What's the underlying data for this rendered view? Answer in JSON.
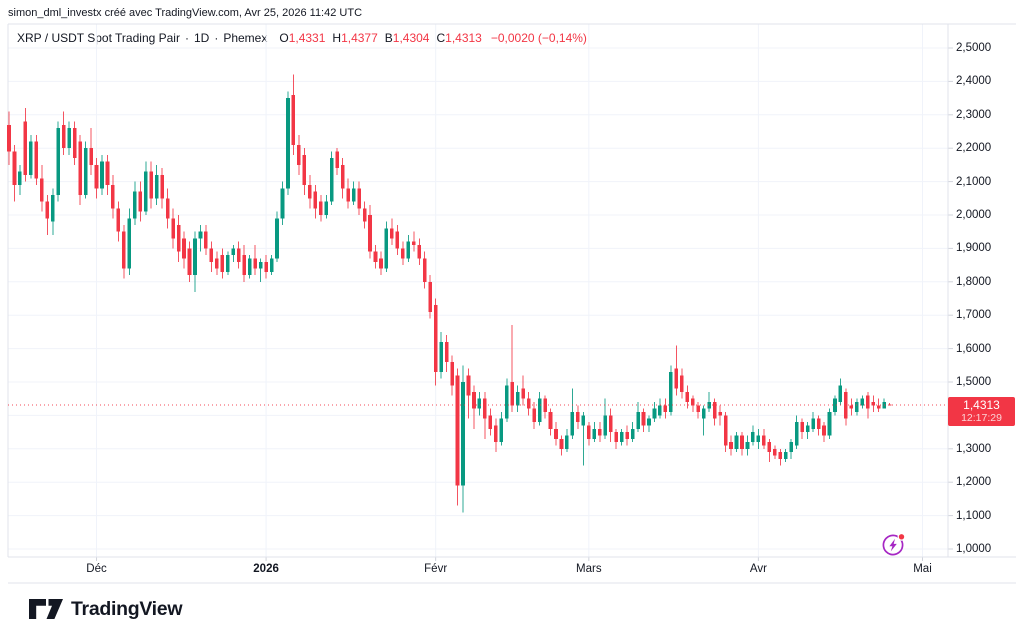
{
  "attribution": "simon_dml_investx créé avec TradingView.com, Avr 25, 2026 11:42 UTC",
  "legend": {
    "title": "XRP / USDT Spot Trading Pair",
    "separator": "·",
    "interval": "1D",
    "exchange": "Phemex",
    "open_label": "O",
    "open": "1,4331",
    "high_label": "H",
    "high": "1,4377",
    "low_label": "B",
    "low": "1,4304",
    "close_label": "C",
    "close": "1,4313",
    "change": "−0,0020 (−0,14%)"
  },
  "price_scale": {
    "tick_values": [
      2.5,
      2.4,
      2.3,
      2.2,
      2.1,
      2.0,
      1.9,
      1.8,
      1.7,
      1.6,
      1.5,
      1.4,
      1.3,
      1.2,
      1.1,
      1.0
    ],
    "tick_labels": [
      "2,5000",
      "2,4000",
      "2,3000",
      "2,2000",
      "2,1000",
      "2,0000",
      "1,9000",
      "1,8000",
      "1,7000",
      "1,6000",
      "1,5000",
      "1,4000",
      "1,3000",
      "1,2000",
      "1,1000",
      "1,0000"
    ],
    "current": {
      "price_label": "1,4313",
      "countdown": "12:17:29",
      "value": 1.4313
    }
  },
  "time_scale": {
    "ticks": [
      {
        "label": "Déc",
        "index": 16,
        "bold": false
      },
      {
        "label": "2026",
        "index": 47,
        "bold": true
      },
      {
        "label": "Févr",
        "index": 78,
        "bold": false
      },
      {
        "label": "Mars",
        "index": 106,
        "bold": false
      },
      {
        "label": "Avr",
        "index": 137,
        "bold": false
      },
      {
        "label": "Mai",
        "index": 167,
        "bold": false
      }
    ]
  },
  "footer": {
    "logo_text": "TradingView"
  },
  "colors": {
    "up": "#089981",
    "down": "#f23645",
    "grid": "#f0f3fa",
    "border": "#e0e3eb",
    "tick": "#d1d4dc",
    "text": "#131722",
    "flash_purple": "#a627c4",
    "dot_red": "#f23645"
  },
  "chart_data": {
    "type": "candlestick",
    "title": "XRP / USDT Spot Trading Pair",
    "interval": "1D",
    "exchange": "Phemex",
    "y_min": 1.0,
    "y_max": 2.5,
    "grid": true,
    "current_price": 1.4313,
    "last_ohlc": {
      "open": 1.4331,
      "high": 1.4377,
      "low": 1.4304,
      "close": 1.4313
    },
    "x_month_labels": [
      "Déc",
      "2026",
      "Févr",
      "Mars",
      "Avr",
      "Mai"
    ],
    "candles_ohlc": [
      [
        2.27,
        2.31,
        2.15,
        2.19
      ],
      [
        2.19,
        2.21,
        2.04,
        2.09
      ],
      [
        2.09,
        2.15,
        2.06,
        2.13
      ],
      [
        2.28,
        2.32,
        2.1,
        2.12
      ],
      [
        2.12,
        2.24,
        2.11,
        2.22
      ],
      [
        2.22,
        2.24,
        2.09,
        2.11
      ],
      [
        2.11,
        2.15,
        2.01,
        2.04
      ],
      [
        2.04,
        2.06,
        1.94,
        1.99
      ],
      [
        1.98,
        2.08,
        1.94,
        2.06
      ],
      [
        2.06,
        2.28,
        2.04,
        2.26
      ],
      [
        2.27,
        2.31,
        2.18,
        2.2
      ],
      [
        2.2,
        2.28,
        2.18,
        2.26
      ],
      [
        2.26,
        2.28,
        2.15,
        2.17
      ],
      [
        2.22,
        2.24,
        2.03,
        2.06
      ],
      [
        2.06,
        2.22,
        2.05,
        2.2
      ],
      [
        2.2,
        2.26,
        2.12,
        2.15
      ],
      [
        2.15,
        2.17,
        2.05,
        2.08
      ],
      [
        2.08,
        2.18,
        2.06,
        2.16
      ],
      [
        2.16,
        2.18,
        2.06,
        2.09
      ],
      [
        2.09,
        2.12,
        1.99,
        2.02
      ],
      [
        2.02,
        2.04,
        1.92,
        1.95
      ],
      [
        1.95,
        1.97,
        1.81,
        1.84
      ],
      [
        1.84,
        2.02,
        1.82,
        1.99
      ],
      [
        1.99,
        2.1,
        1.97,
        2.07
      ],
      [
        2.07,
        2.1,
        1.98,
        2.01
      ],
      [
        2.01,
        2.16,
        2.0,
        2.13
      ],
      [
        2.13,
        2.16,
        2.02,
        2.05
      ],
      [
        2.05,
        2.15,
        2.03,
        2.12
      ],
      [
        2.12,
        2.14,
        2.02,
        2.05
      ],
      [
        2.05,
        2.08,
        1.96,
        1.99
      ],
      [
        1.99,
        2.02,
        1.9,
        1.93
      ],
      [
        1.97,
        2.0,
        1.86,
        1.89
      ],
      [
        1.93,
        1.95,
        1.84,
        1.87
      ],
      [
        1.9,
        1.92,
        1.8,
        1.82
      ],
      [
        1.82,
        1.95,
        1.77,
        1.93
      ],
      [
        1.93,
        1.97,
        1.89,
        1.95
      ],
      [
        1.95,
        1.97,
        1.88,
        1.9
      ],
      [
        1.9,
        1.92,
        1.83,
        1.86
      ],
      [
        1.87,
        1.89,
        1.82,
        1.84
      ],
      [
        1.88,
        1.9,
        1.81,
        1.83
      ],
      [
        1.83,
        1.89,
        1.82,
        1.88
      ],
      [
        1.88,
        1.91,
        1.86,
        1.9
      ],
      [
        1.9,
        1.92,
        1.84,
        1.86
      ],
      [
        1.88,
        1.91,
        1.8,
        1.82
      ],
      [
        1.82,
        1.88,
        1.81,
        1.87
      ],
      [
        1.87,
        1.91,
        1.82,
        1.84
      ],
      [
        1.84,
        1.87,
        1.8,
        1.86
      ],
      [
        1.86,
        1.88,
        1.81,
        1.83
      ],
      [
        1.83,
        1.88,
        1.82,
        1.87
      ],
      [
        1.87,
        2.01,
        1.86,
        1.99
      ],
      [
        1.99,
        2.1,
        1.97,
        2.08
      ],
      [
        2.08,
        2.37,
        2.06,
        2.35
      ],
      [
        2.36,
        2.42,
        2.18,
        2.21
      ],
      [
        2.21,
        2.24,
        2.12,
        2.15
      ],
      [
        2.18,
        2.2,
        2.06,
        2.09
      ],
      [
        2.09,
        2.12,
        2.02,
        2.05
      ],
      [
        2.07,
        2.09,
        1.99,
        2.02
      ],
      [
        2.04,
        2.06,
        1.98,
        2.0
      ],
      [
        2.0,
        2.06,
        1.99,
        2.04
      ],
      [
        2.04,
        2.19,
        2.03,
        2.17
      ],
      [
        2.19,
        2.2,
        2.12,
        2.14
      ],
      [
        2.15,
        2.17,
        2.05,
        2.08
      ],
      [
        2.08,
        2.11,
        2.02,
        2.04
      ],
      [
        2.04,
        2.1,
        2.03,
        2.08
      ],
      [
        2.08,
        2.1,
        2.0,
        2.02
      ],
      [
        2.02,
        2.04,
        1.96,
        1.98
      ],
      [
        2.0,
        2.03,
        1.87,
        1.89
      ],
      [
        1.89,
        1.91,
        1.84,
        1.86
      ],
      [
        1.87,
        1.89,
        1.82,
        1.84
      ],
      [
        1.84,
        1.98,
        1.83,
        1.96
      ],
      [
        1.96,
        1.99,
        1.91,
        1.93
      ],
      [
        1.95,
        1.97,
        1.88,
        1.9
      ],
      [
        1.9,
        1.92,
        1.85,
        1.87
      ],
      [
        1.87,
        1.94,
        1.86,
        1.92
      ],
      [
        1.92,
        1.95,
        1.89,
        1.91
      ],
      [
        1.91,
        1.93,
        1.85,
        1.87
      ],
      [
        1.87,
        1.89,
        1.78,
        1.8
      ],
      [
        1.8,
        1.82,
        1.69,
        1.71
      ],
      [
        1.73,
        1.75,
        1.49,
        1.53
      ],
      [
        1.53,
        1.65,
        1.51,
        1.62
      ],
      [
        1.62,
        1.64,
        1.53,
        1.56
      ],
      [
        1.56,
        1.58,
        1.46,
        1.49
      ],
      [
        1.52,
        1.54,
        1.13,
        1.19
      ],
      [
        1.19,
        1.55,
        1.11,
        1.5
      ],
      [
        1.52,
        1.54,
        1.39,
        1.46
      ],
      [
        1.47,
        1.49,
        1.36,
        1.42
      ],
      [
        1.42,
        1.47,
        1.4,
        1.45
      ],
      [
        1.45,
        1.47,
        1.33,
        1.39
      ],
      [
        1.4,
        1.42,
        1.34,
        1.36
      ],
      [
        1.37,
        1.39,
        1.29,
        1.32
      ],
      [
        1.32,
        1.41,
        1.31,
        1.39
      ],
      [
        1.39,
        1.51,
        1.38,
        1.49
      ],
      [
        1.5,
        1.67,
        1.41,
        1.43
      ],
      [
        1.43,
        1.49,
        1.41,
        1.47
      ],
      [
        1.48,
        1.52,
        1.43,
        1.45
      ],
      [
        1.45,
        1.47,
        1.4,
        1.42
      ],
      [
        1.42,
        1.44,
        1.36,
        1.38
      ],
      [
        1.38,
        1.47,
        1.37,
        1.45
      ],
      [
        1.45,
        1.46,
        1.39,
        1.41
      ],
      [
        1.41,
        1.42,
        1.34,
        1.36
      ],
      [
        1.36,
        1.38,
        1.31,
        1.33
      ],
      [
        1.33,
        1.34,
        1.28,
        1.3
      ],
      [
        1.3,
        1.36,
        1.29,
        1.34
      ],
      [
        1.34,
        1.48,
        1.33,
        1.41
      ],
      [
        1.41,
        1.43,
        1.36,
        1.38
      ],
      [
        1.37,
        1.41,
        1.25,
        1.4
      ],
      [
        1.37,
        1.38,
        1.31,
        1.33
      ],
      [
        1.33,
        1.38,
        1.32,
        1.36
      ],
      [
        1.36,
        1.38,
        1.32,
        1.34
      ],
      [
        1.34,
        1.45,
        1.33,
        1.4
      ],
      [
        1.4,
        1.42,
        1.32,
        1.35
      ],
      [
        1.35,
        1.36,
        1.3,
        1.32
      ],
      [
        1.32,
        1.36,
        1.31,
        1.35
      ],
      [
        1.35,
        1.37,
        1.31,
        1.33
      ],
      [
        1.33,
        1.38,
        1.32,
        1.36
      ],
      [
        1.36,
        1.44,
        1.35,
        1.41
      ],
      [
        1.41,
        1.42,
        1.35,
        1.37
      ],
      [
        1.37,
        1.4,
        1.35,
        1.39
      ],
      [
        1.39,
        1.44,
        1.38,
        1.42
      ],
      [
        1.4,
        1.45,
        1.39,
        1.43
      ],
      [
        1.43,
        1.45,
        1.39,
        1.41
      ],
      [
        1.41,
        1.55,
        1.4,
        1.53
      ],
      [
        1.54,
        1.61,
        1.46,
        1.48
      ],
      [
        1.52,
        1.54,
        1.45,
        1.47
      ],
      [
        1.47,
        1.49,
        1.42,
        1.44
      ],
      [
        1.45,
        1.46,
        1.41,
        1.43
      ],
      [
        1.43,
        1.44,
        1.39,
        1.41
      ],
      [
        1.39,
        1.43,
        1.34,
        1.42
      ],
      [
        1.42,
        1.47,
        1.41,
        1.44
      ],
      [
        1.44,
        1.45,
        1.37,
        1.39
      ],
      [
        1.41,
        1.43,
        1.37,
        1.4
      ],
      [
        1.4,
        1.41,
        1.29,
        1.31
      ],
      [
        1.32,
        1.34,
        1.28,
        1.3
      ],
      [
        1.3,
        1.35,
        1.29,
        1.34
      ],
      [
        1.34,
        1.35,
        1.28,
        1.3
      ],
      [
        1.3,
        1.34,
        1.28,
        1.32
      ],
      [
        1.32,
        1.37,
        1.31,
        1.35
      ],
      [
        1.32,
        1.36,
        1.3,
        1.34
      ],
      [
        1.34,
        1.36,
        1.3,
        1.31
      ],
      [
        1.32,
        1.33,
        1.26,
        1.29
      ],
      [
        1.3,
        1.31,
        1.27,
        1.28
      ],
      [
        1.29,
        1.3,
        1.25,
        1.27
      ],
      [
        1.27,
        1.3,
        1.26,
        1.29
      ],
      [
        1.29,
        1.33,
        1.27,
        1.32
      ],
      [
        1.31,
        1.4,
        1.3,
        1.38
      ],
      [
        1.38,
        1.39,
        1.33,
        1.35
      ],
      [
        1.35,
        1.38,
        1.33,
        1.37
      ],
      [
        1.36,
        1.41,
        1.35,
        1.39
      ],
      [
        1.39,
        1.4,
        1.34,
        1.36
      ],
      [
        1.37,
        1.38,
        1.32,
        1.34
      ],
      [
        1.34,
        1.42,
        1.33,
        1.41
      ],
      [
        1.41,
        1.46,
        1.4,
        1.45
      ],
      [
        1.44,
        1.51,
        1.43,
        1.49
      ],
      [
        1.47,
        1.48,
        1.37,
        1.39
      ],
      [
        1.43,
        1.45,
        1.4,
        1.42
      ],
      [
        1.41,
        1.45,
        1.4,
        1.44
      ],
      [
        1.43,
        1.46,
        1.42,
        1.45
      ],
      [
        1.46,
        1.47,
        1.39,
        1.42
      ],
      [
        1.44,
        1.46,
        1.41,
        1.43
      ],
      [
        1.43,
        1.45,
        1.41,
        1.42
      ],
      [
        1.42,
        1.45,
        1.42,
        1.44
      ],
      [
        1.4331,
        1.4377,
        1.4304,
        1.4313
      ]
    ]
  }
}
